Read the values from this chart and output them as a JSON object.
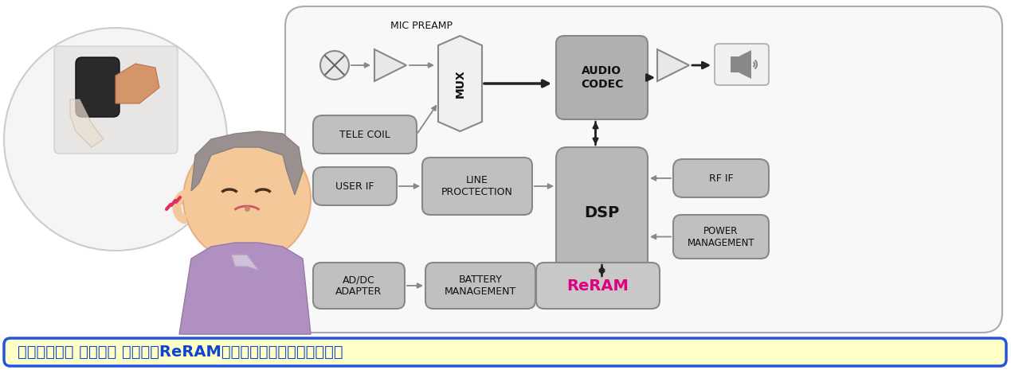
{
  "bg_color": "#ffffff",
  "box_fill_gray": "#c0c0c0",
  "box_fill_light_gray": "#d8d8d8",
  "box_fill_white": "#f2f2f2",
  "box_fill_dark": "#b0b0b0",
  "dsp_fill": "#b8b8b8",
  "audio_fill": "#b0b0b0",
  "reram_fill": "#c8c8c8",
  "text_dark": "#111111",
  "text_reram": "#e0007f",
  "arrow_dark": "#222222",
  "arrow_gray": "#888888",
  "diagram_bg": "#f8f8f8",
  "diagram_border": "#aaaaaa",
  "banner_bg": "#ffffc8",
  "banner_border": "#2255dd",
  "banner_text_color": "#1144cc",
  "banner_text": "可字节访问， 低功耗， 小封装的ReRAM是助听器的最佳存储器的选择",
  "title_mic": "MIC PREAMP",
  "label_tele": "TELE COIL",
  "label_mux": "MUX",
  "label_audio": "AUDIO\nCODEC",
  "label_userif": "USER IF",
  "label_line": "LINE\nPROCTECTION",
  "label_dsp": "DSP",
  "label_rfif": "RF IF",
  "label_power": "POWER\nMANAGEMENT",
  "label_addc": "AD/DC\nADAPTER",
  "label_battery": "BATTERY\nMANAGEMENT",
  "label_reram": "ReRAM",
  "figsize": [
    12.69,
    4.65
  ],
  "dpi": 100
}
